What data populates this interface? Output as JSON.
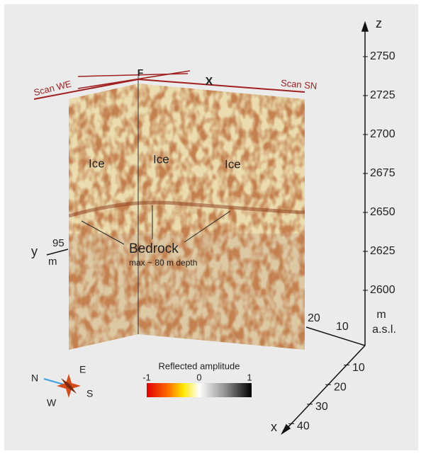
{
  "labels": {
    "z": "z",
    "x": "x",
    "y": "y",
    "fold": "F",
    "cross": "X",
    "scan_we": "Scan WE",
    "scan_sn": "Scan SN",
    "ice": [
      "Ice",
      "Ice",
      "Ice"
    ],
    "bedrock": "Bedrock",
    "bedrock_note": "max ~ 80 m depth",
    "y_scale": "95",
    "y_unit": "m",
    "unit": "m",
    "unit_note": "a.s.l."
  },
  "z_axis": {
    "ticks": [
      "2750",
      "2725",
      "2700",
      "2675",
      "2650",
      "2625",
      "2600"
    ]
  },
  "x_axis": {
    "ticks": [
      "10",
      "20",
      "30",
      "40"
    ]
  },
  "y_axis": {
    "ticks": [
      "20",
      "10"
    ]
  },
  "compass": {
    "n": "N",
    "e": "E",
    "s": "S",
    "w": "W"
  },
  "legend": {
    "title": "Reflected amplitude",
    "ticks": [
      "-1",
      "0",
      "1"
    ]
  }
}
